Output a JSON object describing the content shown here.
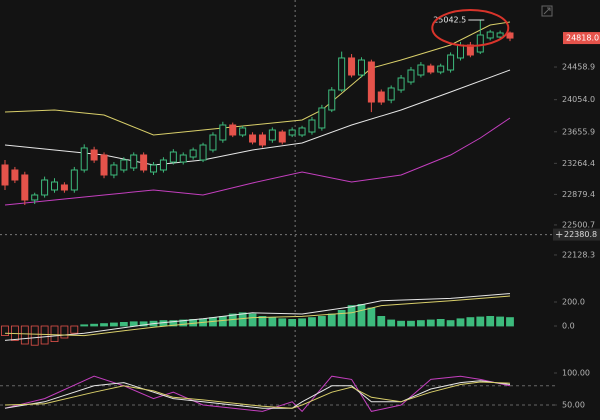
{
  "chart_data": {
    "type": "candlestick",
    "up_color": "#3dbb7d",
    "down_color": "#e5534b",
    "candles": {
      "open": [
        23244,
        23182,
        23120,
        22810,
        22872,
        22934,
        22996,
        22934,
        23182,
        23430,
        23368,
        23120,
        23182,
        23207,
        23368,
        23157,
        23182,
        23281,
        23281,
        23343,
        23306,
        23430,
        23554,
        23740,
        23616,
        23616,
        23616,
        23554,
        23653,
        23616,
        23616,
        23653,
        23703,
        23926,
        24174,
        24571,
        24360,
        24521,
        24149,
        24050,
        24174,
        24273,
        24360,
        24471,
        24397,
        24422,
        24571,
        24732,
        24645,
        24819,
        24831,
        24881
      ],
      "high": [
        23306,
        23220,
        23160,
        22900,
        23100,
        23080,
        23030,
        23220,
        23500,
        23470,
        23400,
        23280,
        23340,
        23400,
        23400,
        23280,
        23340,
        23440,
        23400,
        23460,
        23520,
        23650,
        23780,
        23770,
        23730,
        23650,
        23650,
        23710,
        23680,
        23710,
        23730,
        23840,
        23990,
        24210,
        24650,
        24620,
        24580,
        24550,
        24180,
        24230,
        24360,
        24460,
        24520,
        24500,
        24500,
        24640,
        24770,
        24770,
        25042.5,
        24920,
        24910,
        24900
      ],
      "low": [
        22934,
        23020,
        22748,
        22760,
        22840,
        22900,
        22900,
        22900,
        23150,
        23270,
        23080,
        23080,
        23150,
        23170,
        23150,
        23120,
        23150,
        23250,
        23250,
        23310,
        23280,
        23400,
        23520,
        23590,
        23590,
        23500,
        23460,
        23520,
        23500,
        23590,
        23590,
        23620,
        23670,
        23900,
        24150,
        24330,
        24330,
        23900,
        23990,
        24010,
        24140,
        24240,
        24330,
        24370,
        24370,
        24390,
        24540,
        24580,
        24620,
        24790,
        24800,
        24780
      ],
      "close": [
        22996,
        23058,
        22810,
        22872,
        23058,
        23033,
        22934,
        23182,
        23455,
        23306,
        23120,
        23244,
        23306,
        23368,
        23182,
        23244,
        23306,
        23405,
        23368,
        23430,
        23492,
        23616,
        23740,
        23616,
        23703,
        23529,
        23492,
        23678,
        23529,
        23678,
        23703,
        23802,
        23951,
        24174,
        24571,
        24360,
        24546,
        24025,
        24025,
        24199,
        24323,
        24422,
        24484,
        24397,
        24471,
        24608,
        24732,
        24608,
        24856,
        24893,
        24881,
        24818
      ]
    },
    "ylim": [
      21917,
      25290
    ],
    "yticks": [
      24458.9,
      {
        "value": 24054,
        "label": "24054.0"
      },
      23655.9,
      23264.4,
      22879.4,
      22500.7,
      22128.3
    ],
    "overlays": [
      {
        "color": "#d9cf6a",
        "x": [
          0,
          5,
          10,
          15,
          20,
          25,
          30,
          32,
          35,
          37,
          40,
          45,
          49,
          51
        ],
        "values": [
          23901,
          23926,
          23864,
          23616,
          23678,
          23740,
          23802,
          23926,
          24236,
          24446,
          24546,
          24732,
          24980,
          25017
        ]
      },
      {
        "color": "#e6e6e6",
        "x": [
          0,
          5,
          10,
          15,
          20,
          25,
          30,
          35,
          40,
          45,
          51
        ],
        "values": [
          23492,
          23430,
          23368,
          23244,
          23306,
          23430,
          23517,
          23740,
          23926,
          24149,
          24422
        ]
      },
      {
        "color": "#c43fbf",
        "x": [
          0,
          5,
          10,
          15,
          20,
          25,
          30,
          35,
          40,
          45,
          48,
          51
        ],
        "values": [
          22748,
          22810,
          22872,
          22934,
          22872,
          23021,
          23157,
          23033,
          23120,
          23368,
          23579,
          23827
        ]
      }
    ],
    "high_marker": 25042.5,
    "current_price": {
      "value": 24818,
      "label": "24818.0"
    },
    "crosshair": {
      "x": 29.3,
      "y": 22380.8
    },
    "macd": {
      "ylim": [
        -200,
        425
      ],
      "yticks": [
        {
          "value": 200,
          "label": "200.0"
        },
        {
          "value": 0,
          "label": "0.0"
        }
      ],
      "histogram": [
        -80,
        -120,
        -150,
        -160,
        -150,
        -130,
        -100,
        -60,
        10,
        15,
        20,
        25,
        30,
        35,
        35,
        40,
        45,
        45,
        50,
        55,
        60,
        70,
        80,
        100,
        110,
        100,
        80,
        70,
        60,
        55,
        60,
        70,
        80,
        100,
        130,
        170,
        180,
        150,
        80,
        50,
        40,
        40,
        45,
        50,
        55,
        45,
        60,
        70,
        75,
        80,
        75,
        70
      ],
      "lines": [
        {
          "color": "#e6e6e6",
          "x": [
            0,
            8,
            15,
            20,
            25,
            30,
            35,
            38,
            45,
            51
          ],
          "values": [
            -120,
            -60,
            20,
            60,
            110,
            100,
            160,
            210,
            230,
            270
          ]
        },
        {
          "color": "#d9cf6a",
          "x": [
            0,
            8,
            15,
            20,
            25,
            30,
            35,
            38,
            45,
            51
          ],
          "values": [
            -60,
            -80,
            -10,
            30,
            70,
            80,
            110,
            170,
            210,
            250
          ]
        }
      ]
    },
    "stoch": {
      "ylim": [
        25,
        125
      ],
      "yticks": [
        {
          "value": 100,
          "label": "100.00"
        },
        {
          "value": 50,
          "label": "50.00"
        }
      ],
      "levels": [
        80,
        50
      ],
      "lines": [
        {
          "color": "#c43fbf",
          "x": [
            0,
            4,
            9,
            12,
            15,
            17,
            20,
            26,
            29,
            30,
            33,
            35,
            37,
            40,
            43,
            46,
            48,
            51
          ],
          "values": [
            45,
            60,
            95,
            80,
            60,
            70,
            50,
            40,
            55,
            40,
            95,
            90,
            40,
            50,
            90,
            95,
            90,
            80
          ]
        },
        {
          "color": "#e6e6e6",
          "x": [
            0,
            4,
            9,
            12,
            15,
            17,
            20,
            26,
            29,
            30,
            33,
            35,
            37,
            40,
            43,
            46,
            48,
            51
          ],
          "values": [
            45,
            55,
            80,
            85,
            70,
            60,
            55,
            45,
            45,
            55,
            80,
            80,
            55,
            55,
            75,
            85,
            88,
            82
          ]
        },
        {
          "color": "#d9cf6a",
          "x": [
            0,
            4,
            9,
            12,
            15,
            17,
            20,
            26,
            29,
            30,
            33,
            35,
            37,
            40,
            43,
            46,
            48,
            51
          ],
          "values": [
            50,
            52,
            70,
            80,
            72,
            62,
            58,
            48,
            45,
            50,
            70,
            78,
            62,
            55,
            70,
            82,
            86,
            84
          ]
        }
      ]
    }
  }
}
